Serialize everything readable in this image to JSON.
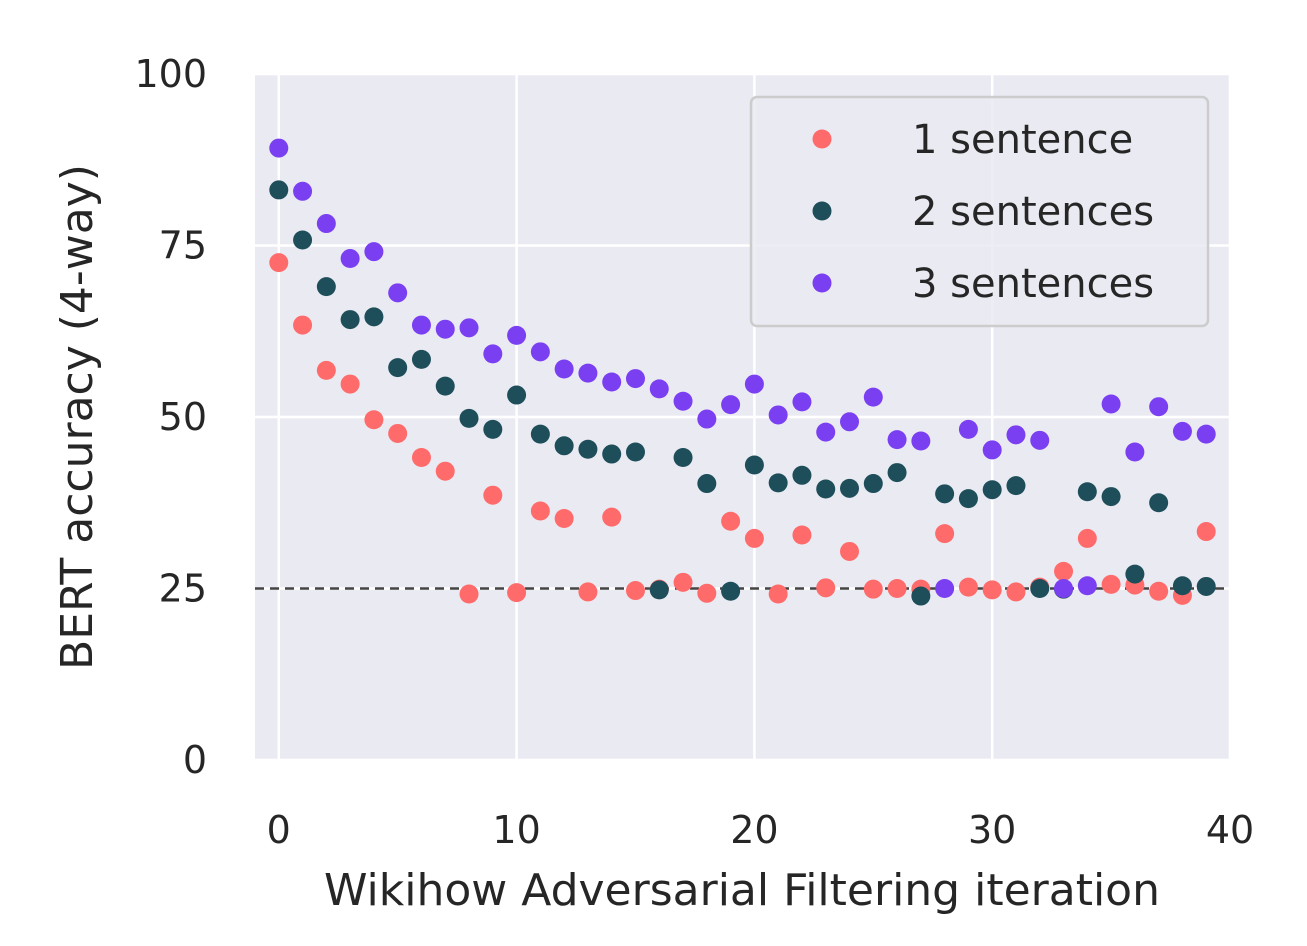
{
  "chart_data": {
    "type": "scatter",
    "title": "",
    "xlabel": "Wikihow Adversarial Filtering iteration",
    "ylabel": "BERT accuracy (4-way)",
    "xlim": [
      -1,
      40
    ],
    "ylim": [
      0,
      100
    ],
    "xticks": [
      "0",
      "10",
      "20",
      "30",
      "40"
    ],
    "yticks": [
      "0",
      "25",
      "50",
      "75",
      "100"
    ],
    "grid": true,
    "legend_position": "top-right",
    "reference_line": {
      "y": 25,
      "style": "dashed"
    },
    "series": [
      {
        "name": "1 sentence",
        "color": "#ff6b6b",
        "x": [
          0,
          1,
          2,
          3,
          4,
          5,
          6,
          7,
          8,
          9,
          10,
          11,
          12,
          13,
          14,
          15,
          16,
          17,
          18,
          19,
          20,
          21,
          22,
          23,
          24,
          25,
          26,
          27,
          28,
          29,
          30,
          31,
          32,
          33,
          34,
          35,
          36,
          37,
          38,
          39
        ],
        "y": [
          72.5,
          63.4,
          56.8,
          54.8,
          49.6,
          47.6,
          44.1,
          42.1,
          24.2,
          38.6,
          24.4,
          36.3,
          35.2,
          24.5,
          35.4,
          24.7,
          24.9,
          25.9,
          24.3,
          34.8,
          32.3,
          24.2,
          32.8,
          25.1,
          30.4,
          24.9,
          25.0,
          24.9,
          33.0,
          25.2,
          24.8,
          24.5,
          25.2,
          27.5,
          32.3,
          25.6,
          25.5,
          24.6,
          24.0,
          33.3
        ]
      },
      {
        "name": "2 sentences",
        "color": "#1d4e5a",
        "x": [
          0,
          1,
          2,
          3,
          4,
          5,
          6,
          7,
          8,
          9,
          10,
          11,
          12,
          13,
          14,
          15,
          16,
          17,
          18,
          19,
          20,
          21,
          22,
          23,
          24,
          25,
          26,
          27,
          28,
          29,
          30,
          31,
          32,
          33,
          34,
          35,
          36,
          37,
          38,
          39
        ],
        "y": [
          83.1,
          75.8,
          69.0,
          64.2,
          64.6,
          57.2,
          58.4,
          54.5,
          49.8,
          48.2,
          53.2,
          47.5,
          45.8,
          45.3,
          44.6,
          44.9,
          24.8,
          44.1,
          40.3,
          24.6,
          43.0,
          40.4,
          41.5,
          39.5,
          39.6,
          40.3,
          41.9,
          23.9,
          38.8,
          38.1,
          39.4,
          40.0,
          25.0,
          24.9,
          39.1,
          38.4,
          27.1,
          37.5,
          25.4,
          25.3
        ]
      },
      {
        "name": "3 sentences",
        "color": "#7b3ff2",
        "x": [
          0,
          1,
          2,
          3,
          4,
          5,
          6,
          7,
          8,
          9,
          10,
          11,
          12,
          13,
          14,
          15,
          16,
          17,
          18,
          19,
          20,
          21,
          22,
          23,
          24,
          25,
          26,
          27,
          28,
          29,
          30,
          31,
          32,
          33,
          34,
          35,
          36,
          37,
          38,
          39
        ],
        "y": [
          89.2,
          82.9,
          78.2,
          73.1,
          74.1,
          68.1,
          63.4,
          62.8,
          63.0,
          59.2,
          61.9,
          59.5,
          57.0,
          56.4,
          55.1,
          55.6,
          54.1,
          52.3,
          49.7,
          51.8,
          54.8,
          50.3,
          52.2,
          47.8,
          49.3,
          52.9,
          46.7,
          46.5,
          25.0,
          48.2,
          45.2,
          47.4,
          46.6,
          25.0,
          25.4,
          51.9,
          44.9,
          51.5,
          47.9,
          47.5
        ]
      }
    ]
  }
}
